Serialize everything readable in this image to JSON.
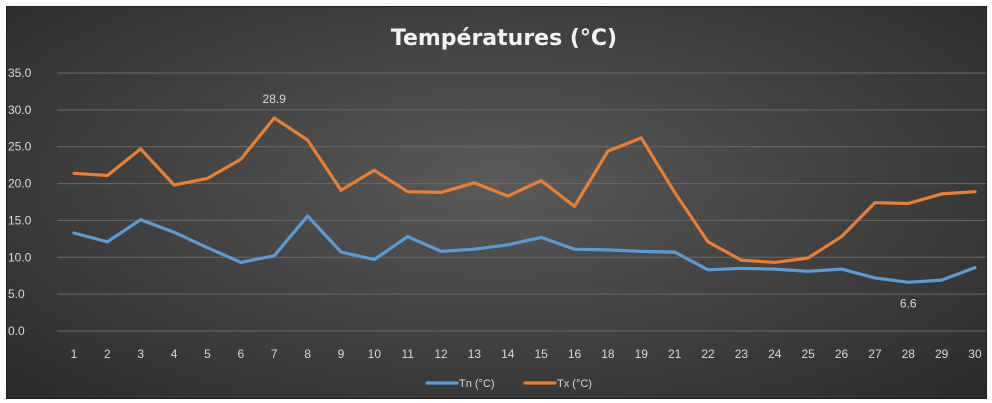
{
  "chart_data": {
    "type": "line",
    "title": "Températures (°C)",
    "categories": [
      "1",
      "2",
      "3",
      "4",
      "5",
      "6",
      "7",
      "8",
      "9",
      "10",
      "11",
      "12",
      "13",
      "14",
      "15",
      "16",
      "18",
      "19",
      "21",
      "22",
      "23",
      "24",
      "25",
      "26",
      "27",
      "28",
      "29",
      "30"
    ],
    "yticks": [
      "0.0",
      "5.0",
      "10.0",
      "15.0",
      "20.0",
      "25.0",
      "30.0",
      "35.0"
    ],
    "ylim": [
      0,
      35
    ],
    "grid": true,
    "legend_position": "bottom",
    "series": [
      {
        "name": "Tn (°C)",
        "color": "#5b9bd5",
        "values": [
          13.3,
          12.1,
          15.1,
          13.4,
          11.3,
          9.3,
          10.2,
          15.6,
          10.7,
          9.7,
          12.8,
          10.8,
          11.1,
          11.7,
          12.7,
          11.1,
          11.0,
          10.8,
          10.7,
          8.3,
          8.5,
          8.4,
          8.1,
          8.4,
          7.2,
          6.6,
          6.9,
          8.6
        ]
      },
      {
        "name": "Tx (°C)",
        "color": "#ed7d31",
        "values": [
          21.4,
          21.1,
          24.7,
          19.8,
          20.7,
          23.3,
          28.9,
          25.9,
          19.1,
          21.8,
          18.9,
          18.8,
          20.1,
          18.3,
          20.4,
          16.9,
          24.4,
          26.2,
          18.8,
          12.1,
          9.6,
          9.3,
          9.9,
          12.8,
          17.4,
          17.3,
          18.6,
          18.9
        ]
      }
    ],
    "data_labels": [
      {
        "text": "28.9",
        "series": 1,
        "index": 6
      },
      {
        "text": "6.6",
        "series": 0,
        "index": 25
      }
    ]
  }
}
